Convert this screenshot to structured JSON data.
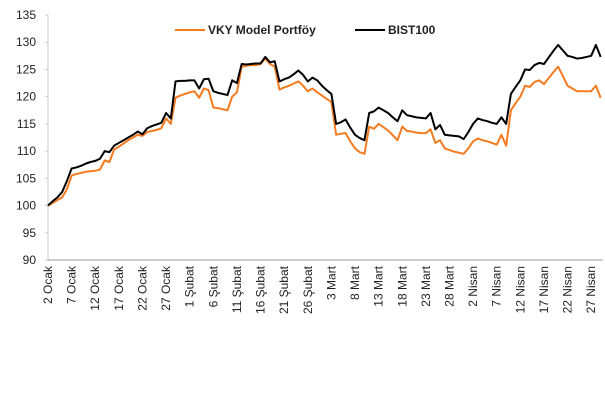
{
  "chart_data": {
    "type": "line",
    "categories": [
      "2 Ocak",
      null,
      null,
      null,
      null,
      "7 Ocak",
      null,
      null,
      null,
      null,
      "12 Ocak",
      null,
      null,
      null,
      null,
      "17 Ocak",
      null,
      null,
      null,
      null,
      "22 Ocak",
      null,
      null,
      null,
      null,
      "27 Ocak",
      null,
      null,
      null,
      null,
      "1 Şubat",
      null,
      null,
      null,
      null,
      "6 Şubat",
      null,
      null,
      null,
      null,
      "11 Şubat",
      null,
      null,
      null,
      null,
      "16 Şubat",
      null,
      null,
      null,
      null,
      "21 Şubat",
      null,
      null,
      null,
      null,
      "26 Şubat",
      null,
      null,
      null,
      null,
      "3 Mart",
      null,
      null,
      null,
      null,
      "8 Mart",
      null,
      null,
      null,
      null,
      "13 Mart",
      null,
      null,
      null,
      null,
      "18 Mart",
      null,
      null,
      null,
      null,
      "23 Mart",
      null,
      null,
      null,
      null,
      "28 Mart",
      null,
      null,
      null,
      null,
      "2 Nisan",
      null,
      null,
      null,
      null,
      "7 Nisan",
      null,
      null,
      null,
      null,
      "12 Nisan",
      null,
      null,
      null,
      null,
      "17 Nisan",
      null,
      null,
      null,
      null,
      "22 Nisan",
      null,
      null,
      null,
      null,
      "27 Nisan",
      null,
      null
    ],
    "series": [
      {
        "name": "VKY Model Portföy",
        "color": "#f47b20",
        "values": [
          100,
          100.5,
          101,
          101.5,
          103,
          105.5,
          105.8,
          106,
          106.2,
          106.3,
          106.4,
          106.6,
          108.3,
          108,
          110.3,
          110.8,
          111.4,
          112,
          112.5,
          113,
          112.8,
          113.5,
          113.7,
          113.9,
          114.2,
          116,
          115,
          119.8,
          120.2,
          120.5,
          120.8,
          121,
          119.8,
          121.5,
          121.2,
          118,
          117.9,
          117.7,
          117.5,
          120,
          120.8,
          125.5,
          125.7,
          125.8,
          125.8,
          126,
          127,
          126,
          125.5,
          121.3,
          121.7,
          122,
          122.4,
          122.8,
          122,
          121,
          121.5,
          120.8,
          120.2,
          119.6,
          119,
          113,
          113.2,
          113.3,
          111.8,
          110.5,
          109.8,
          109.5,
          114.5,
          114.1,
          115,
          114.4,
          113.8,
          112.9,
          112,
          114.5,
          113.7,
          113.6,
          113.4,
          113.3,
          113.3,
          114,
          111.5,
          112,
          110.5,
          110.2,
          109.9,
          109.7,
          109.5,
          110.5,
          111.8,
          112.3,
          112,
          111.8,
          111.5,
          111.2,
          113,
          111,
          117.5,
          118.8,
          120,
          122,
          121.8,
          122.7,
          123,
          122.3,
          123.4,
          124.5,
          125.5,
          123.8,
          122,
          121.5,
          121,
          121,
          121,
          121,
          122,
          119.8
        ]
      },
      {
        "name": "BIST100",
        "color": "#000000",
        "values": [
          100,
          100.8,
          101.5,
          102.5,
          104.5,
          106.8,
          107,
          107.3,
          107.7,
          108,
          108.2,
          108.6,
          110,
          109.8,
          111,
          111.5,
          112,
          112.5,
          113,
          113.6,
          113.1,
          114.2,
          114.6,
          114.9,
          115.2,
          117,
          116,
          122.8,
          122.9,
          122.9,
          123,
          123,
          121.5,
          123.2,
          123.3,
          121,
          120.7,
          120.5,
          120.3,
          123,
          122.5,
          126,
          125.9,
          126,
          126.1,
          126.1,
          127.3,
          126.3,
          126.5,
          122.8,
          123.2,
          123.5,
          124.1,
          124.8,
          124,
          122.8,
          123.5,
          123,
          122,
          121.2,
          120.5,
          115,
          115.3,
          115.8,
          114.3,
          113,
          112.4,
          112,
          117,
          117.3,
          118,
          117.5,
          117,
          116.2,
          115.5,
          117.5,
          116.6,
          116.4,
          116.2,
          116.1,
          116,
          117,
          114,
          114.8,
          113,
          112.9,
          112.8,
          112.7,
          112.2,
          113.5,
          115,
          116,
          115.7,
          115.5,
          115.2,
          115,
          116.2,
          115,
          120.5,
          121.8,
          123,
          125,
          124.9,
          125.8,
          126.2,
          126,
          127.2,
          128.4,
          129.5,
          128.5,
          127.5,
          127.3,
          127,
          127.1,
          127.3,
          127.5,
          129.5,
          127.3
        ]
      }
    ],
    "ylim": [
      90,
      135
    ],
    "yticks": [
      90,
      95,
      100,
      105,
      110,
      115,
      120,
      125,
      130,
      135
    ],
    "grid": false,
    "legend": "top"
  }
}
